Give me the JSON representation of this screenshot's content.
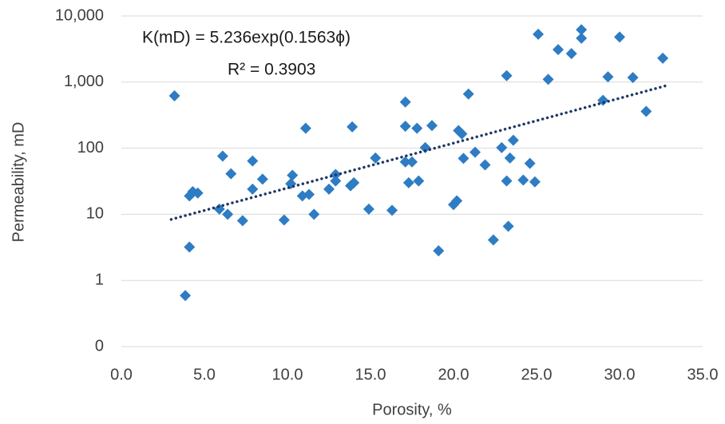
{
  "chart_data": {
    "type": "scatter",
    "annotations": [
      "K(mD) = 5.236exp(0.1563ϕ)",
      "R² = 0.3903"
    ],
    "x_label": "Porosity, %",
    "y_label": "Permeability, mD",
    "log_y": true,
    "grid": true,
    "xlim": [
      0,
      35
    ],
    "xticks": [
      {
        "value": 0,
        "label": "0.0"
      },
      {
        "value": 5,
        "label": "5.0"
      },
      {
        "value": 10,
        "label": "10.0"
      },
      {
        "value": 15,
        "label": "15.0"
      },
      {
        "value": 20,
        "label": "20.0"
      },
      {
        "value": 25,
        "label": "25.0"
      },
      {
        "value": 30,
        "label": "30.0"
      },
      {
        "value": 35,
        "label": "35.0"
      }
    ],
    "ylim": [
      0.1,
      10000
    ],
    "yticks": [
      {
        "value": 0.1,
        "label": "0"
      },
      1,
      10,
      100,
      {
        "value": 1000,
        "label": "1,000"
      },
      {
        "value": 10000,
        "label": "10,000"
      }
    ],
    "series": [
      {
        "color": "#2e7cc4",
        "x": [
          3.2,
          3.85,
          4.1,
          4.1,
          4.3,
          4.6,
          5.9,
          6.1,
          6.4,
          6.6,
          7.3,
          7.9,
          7.9,
          8.5,
          9.8,
          10.3,
          10.2,
          10.9,
          11.1,
          11.3,
          11.6,
          12.5,
          12.9,
          12.9,
          13.8,
          13.9,
          14.0,
          14.9,
          15.3,
          16.3,
          17.1,
          17.1,
          17.1,
          17.3,
          17.5,
          17.8,
          17.9,
          18.3,
          18.7,
          19.1,
          20.0,
          20.2,
          20.3,
          20.5,
          20.6,
          20.9,
          21.3,
          21.9,
          22.4,
          22.9,
          23.2,
          23.2,
          23.3,
          23.4,
          23.6,
          24.2,
          24.6,
          24.9,
          25.1,
          25.7,
          26.3,
          27.1,
          27.7,
          27.7,
          29.0,
          29.3,
          30.0,
          30.8,
          31.6,
          32.6
        ],
        "values": [
          620,
          0.59,
          3.2,
          19,
          22,
          21,
          12,
          76,
          10,
          41,
          8,
          64,
          24,
          34,
          8.2,
          39,
          29,
          19,
          200,
          20,
          10,
          24,
          40,
          32,
          27,
          210,
          30,
          12,
          71,
          11.5,
          500,
          215,
          62,
          30,
          62,
          200,
          32,
          102,
          220,
          2.8,
          14,
          16,
          185,
          165,
          70,
          660,
          87,
          56,
          4.1,
          102,
          1250,
          32,
          6.6,
          71,
          132,
          33,
          59,
          31,
          5300,
          1100,
          3100,
          2700,
          4600,
          6200,
          530,
          1200,
          4800,
          1170,
          360,
          2300
        ]
      }
    ],
    "trendline": {
      "color": "#1f3864",
      "style": "dotted",
      "x": [
        3,
        32.8
      ],
      "values": [
        8.37,
        882
      ]
    }
  }
}
